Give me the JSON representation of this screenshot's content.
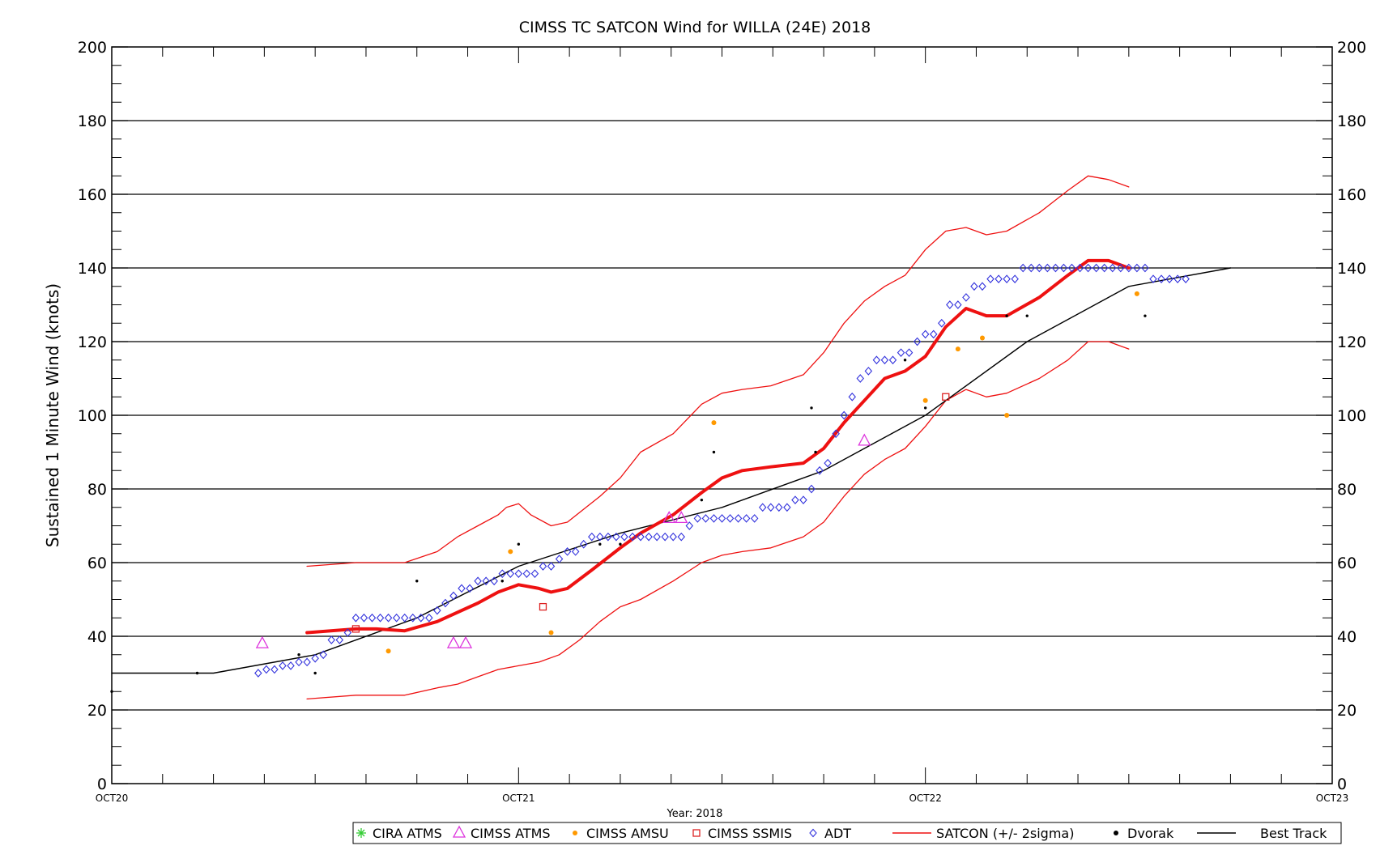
{
  "chart_data": {
    "type": "line",
    "title": "CIMSS TC SATCON Wind for WILLA (24E) 2018",
    "ylabel": "Sustained 1 Minute Wind (knots)",
    "xlabel": "Year: 2018",
    "ylim": [
      0,
      200
    ],
    "xlim": [
      0,
      3
    ],
    "x_unit": "days since OCT20 00Z",
    "y_ticks": [
      "0",
      "20",
      "40",
      "60",
      "80",
      "100",
      "120",
      "140",
      "160",
      "180",
      "200"
    ],
    "x_ticks": [
      "OCT20",
      "OCT21",
      "OCT22",
      "OCT23"
    ],
    "grid": true,
    "legend_position": "bottom",
    "legend": [
      {
        "label": "CIRA ATMS",
        "marker": "asterisk",
        "color": "#33cc33"
      },
      {
        "label": "CIMSS ATMS",
        "marker": "triangle",
        "color": "#dd33dd"
      },
      {
        "label": "CIMSS AMSU",
        "marker": "dot",
        "color": "#ff9900"
      },
      {
        "label": "CIMSS SSMIS",
        "marker": "square",
        "color": "#dd2222"
      },
      {
        "label": "ADT",
        "marker": "diamond",
        "color": "#3333dd"
      },
      {
        "label": "SATCON (+/- 2sigma)",
        "marker": "line",
        "color": "#ee1111"
      },
      {
        "label": "Dvorak",
        "marker": "dot",
        "color": "#000000"
      },
      {
        "label": "Best Track",
        "marker": "line",
        "color": "#000000"
      }
    ],
    "series": [
      {
        "name": "Best Track",
        "color": "#000000",
        "points": [
          [
            0.0,
            30
          ],
          [
            0.25,
            30
          ],
          [
            0.5,
            35
          ],
          [
            0.75,
            45
          ],
          [
            1.0,
            59
          ],
          [
            1.25,
            68
          ],
          [
            1.5,
            75
          ],
          [
            1.75,
            85
          ],
          [
            2.0,
            100
          ],
          [
            2.25,
            120
          ],
          [
            2.5,
            135
          ],
          [
            2.75,
            140
          ]
        ]
      },
      {
        "name": "SATCON",
        "color": "#ee1111",
        "points": [
          [
            0.48,
            41
          ],
          [
            0.6,
            42
          ],
          [
            0.65,
            42
          ],
          [
            0.72,
            41.5
          ],
          [
            0.8,
            44
          ],
          [
            0.9,
            49
          ],
          [
            0.95,
            52
          ],
          [
            1.0,
            54
          ],
          [
            1.05,
            53
          ],
          [
            1.08,
            52
          ],
          [
            1.12,
            53
          ],
          [
            1.18,
            58
          ],
          [
            1.25,
            64
          ],
          [
            1.3,
            68
          ],
          [
            1.38,
            73
          ],
          [
            1.45,
            79
          ],
          [
            1.5,
            83
          ],
          [
            1.55,
            85
          ],
          [
            1.62,
            86
          ],
          [
            1.7,
            87
          ],
          [
            1.75,
            91
          ],
          [
            1.8,
            98
          ],
          [
            1.85,
            104
          ],
          [
            1.9,
            110
          ],
          [
            1.95,
            112
          ],
          [
            2.0,
            116
          ],
          [
            2.05,
            124
          ],
          [
            2.1,
            129
          ],
          [
            2.15,
            127
          ],
          [
            2.2,
            127
          ],
          [
            2.28,
            132
          ],
          [
            2.35,
            138
          ],
          [
            2.4,
            142
          ],
          [
            2.45,
            142
          ],
          [
            2.5,
            140
          ]
        ]
      },
      {
        "name": "SATCON +2sigma",
        "color": "#ee1111",
        "points": [
          [
            0.48,
            59
          ],
          [
            0.6,
            60
          ],
          [
            0.65,
            60
          ],
          [
            0.72,
            60
          ],
          [
            0.8,
            63
          ],
          [
            0.85,
            67
          ],
          [
            0.9,
            70
          ],
          [
            0.95,
            73
          ],
          [
            0.97,
            75
          ],
          [
            1.0,
            76
          ],
          [
            1.03,
            73
          ],
          [
            1.08,
            70
          ],
          [
            1.12,
            71
          ],
          [
            1.2,
            78
          ],
          [
            1.25,
            83
          ],
          [
            1.3,
            90
          ],
          [
            1.38,
            95
          ],
          [
            1.45,
            103
          ],
          [
            1.5,
            106
          ],
          [
            1.55,
            107
          ],
          [
            1.62,
            108
          ],
          [
            1.7,
            111
          ],
          [
            1.75,
            117
          ],
          [
            1.8,
            125
          ],
          [
            1.85,
            131
          ],
          [
            1.9,
            135
          ],
          [
            1.95,
            138
          ],
          [
            2.0,
            145
          ],
          [
            2.05,
            150
          ],
          [
            2.1,
            151
          ],
          [
            2.15,
            149
          ],
          [
            2.2,
            150
          ],
          [
            2.28,
            155
          ],
          [
            2.35,
            161
          ],
          [
            2.4,
            165
          ],
          [
            2.45,
            164
          ],
          [
            2.5,
            162
          ]
        ]
      },
      {
        "name": "SATCON -2sigma",
        "color": "#ee1111",
        "points": [
          [
            0.48,
            23
          ],
          [
            0.6,
            24
          ],
          [
            0.65,
            24
          ],
          [
            0.72,
            24
          ],
          [
            0.8,
            26
          ],
          [
            0.85,
            27
          ],
          [
            0.9,
            29
          ],
          [
            0.95,
            31
          ],
          [
            1.0,
            32
          ],
          [
            1.05,
            33
          ],
          [
            1.1,
            35
          ],
          [
            1.15,
            39
          ],
          [
            1.2,
            44
          ],
          [
            1.25,
            48
          ],
          [
            1.3,
            50
          ],
          [
            1.38,
            55
          ],
          [
            1.45,
            60
          ],
          [
            1.5,
            62
          ],
          [
            1.55,
            63
          ],
          [
            1.62,
            64
          ],
          [
            1.7,
            67
          ],
          [
            1.75,
            71
          ],
          [
            1.8,
            78
          ],
          [
            1.85,
            84
          ],
          [
            1.9,
            88
          ],
          [
            1.95,
            91
          ],
          [
            2.0,
            97
          ],
          [
            2.05,
            104
          ],
          [
            2.1,
            107
          ],
          [
            2.15,
            105
          ],
          [
            2.2,
            106
          ],
          [
            2.28,
            110
          ],
          [
            2.35,
            115
          ],
          [
            2.4,
            120
          ],
          [
            2.45,
            120
          ],
          [
            2.5,
            118
          ]
        ]
      }
    ],
    "scatter": {
      "CIMSS ATMS": [
        [
          0.37,
          38
        ],
        [
          0.84,
          38
        ],
        [
          0.87,
          38
        ],
        [
          1.37,
          72
        ],
        [
          1.4,
          72
        ],
        [
          1.85,
          93
        ]
      ],
      "CIMSS AMSU": [
        [
          0.68,
          36
        ],
        [
          0.98,
          63
        ],
        [
          1.08,
          41
        ],
        [
          1.48,
          98
        ],
        [
          2.0,
          104
        ],
        [
          2.08,
          118
        ],
        [
          2.14,
          121
        ],
        [
          2.2,
          100
        ],
        [
          2.52,
          133
        ]
      ],
      "CIMSS SSMIS": [
        [
          0.6,
          42
        ],
        [
          1.06,
          48
        ],
        [
          2.05,
          105
        ]
      ],
      "ADT": [
        [
          0.36,
          30
        ],
        [
          0.38,
          31
        ],
        [
          0.4,
          31
        ],
        [
          0.42,
          32
        ],
        [
          0.44,
          32
        ],
        [
          0.46,
          33
        ],
        [
          0.48,
          33
        ],
        [
          0.5,
          34
        ],
        [
          0.52,
          35
        ],
        [
          0.54,
          39
        ],
        [
          0.56,
          39
        ],
        [
          0.58,
          41
        ],
        [
          0.6,
          45
        ],
        [
          0.62,
          45
        ],
        [
          0.64,
          45
        ],
        [
          0.66,
          45
        ],
        [
          0.68,
          45
        ],
        [
          0.7,
          45
        ],
        [
          0.72,
          45
        ],
        [
          0.74,
          45
        ],
        [
          0.76,
          45
        ],
        [
          0.78,
          45
        ],
        [
          0.8,
          47
        ],
        [
          0.82,
          49
        ],
        [
          0.84,
          51
        ],
        [
          0.86,
          53
        ],
        [
          0.88,
          53
        ],
        [
          0.9,
          55
        ],
        [
          0.92,
          55
        ],
        [
          0.94,
          55
        ],
        [
          0.96,
          57
        ],
        [
          0.98,
          57
        ],
        [
          1.0,
          57
        ],
        [
          1.02,
          57
        ],
        [
          1.04,
          57
        ],
        [
          1.06,
          59
        ],
        [
          1.08,
          59
        ],
        [
          1.1,
          61
        ],
        [
          1.12,
          63
        ],
        [
          1.14,
          63
        ],
        [
          1.16,
          65
        ],
        [
          1.18,
          67
        ],
        [
          1.2,
          67
        ],
        [
          1.22,
          67
        ],
        [
          1.24,
          67
        ],
        [
          1.26,
          67
        ],
        [
          1.28,
          67
        ],
        [
          1.3,
          67
        ],
        [
          1.32,
          67
        ],
        [
          1.34,
          67
        ],
        [
          1.36,
          67
        ],
        [
          1.38,
          67
        ],
        [
          1.4,
          67
        ],
        [
          1.42,
          70
        ],
        [
          1.44,
          72
        ],
        [
          1.46,
          72
        ],
        [
          1.48,
          72
        ],
        [
          1.5,
          72
        ],
        [
          1.52,
          72
        ],
        [
          1.54,
          72
        ],
        [
          1.56,
          72
        ],
        [
          1.58,
          72
        ],
        [
          1.6,
          75
        ],
        [
          1.62,
          75
        ],
        [
          1.64,
          75
        ],
        [
          1.66,
          75
        ],
        [
          1.68,
          77
        ],
        [
          1.7,
          77
        ],
        [
          1.72,
          80
        ],
        [
          1.74,
          85
        ],
        [
          1.76,
          87
        ],
        [
          1.78,
          95
        ],
        [
          1.8,
          100
        ],
        [
          1.82,
          105
        ],
        [
          1.84,
          110
        ],
        [
          1.86,
          112
        ],
        [
          1.88,
          115
        ],
        [
          1.9,
          115
        ],
        [
          1.92,
          115
        ],
        [
          1.94,
          117
        ],
        [
          1.96,
          117
        ],
        [
          1.98,
          120
        ],
        [
          2.0,
          122
        ],
        [
          2.02,
          122
        ],
        [
          2.04,
          125
        ],
        [
          2.06,
          130
        ],
        [
          2.08,
          130
        ],
        [
          2.1,
          132
        ],
        [
          2.12,
          135
        ],
        [
          2.14,
          135
        ],
        [
          2.16,
          137
        ],
        [
          2.18,
          137
        ],
        [
          2.2,
          137
        ],
        [
          2.22,
          137
        ],
        [
          2.24,
          140
        ],
        [
          2.26,
          140
        ],
        [
          2.28,
          140
        ],
        [
          2.3,
          140
        ],
        [
          2.32,
          140
        ],
        [
          2.34,
          140
        ],
        [
          2.36,
          140
        ],
        [
          2.38,
          140
        ],
        [
          2.4,
          140
        ],
        [
          2.42,
          140
        ],
        [
          2.44,
          140
        ],
        [
          2.46,
          140
        ],
        [
          2.48,
          140
        ],
        [
          2.5,
          140
        ],
        [
          2.52,
          140
        ],
        [
          2.54,
          140
        ],
        [
          2.56,
          137
        ],
        [
          2.58,
          137
        ],
        [
          2.6,
          137
        ],
        [
          2.62,
          137
        ],
        [
          2.64,
          137
        ]
      ],
      "Dvorak": [
        [
          0.0,
          25
        ],
        [
          0.21,
          30
        ],
        [
          0.46,
          35
        ],
        [
          0.5,
          30
        ],
        [
          0.75,
          55
        ],
        [
          0.96,
          55
        ],
        [
          1.0,
          65
        ],
        [
          1.2,
          65
        ],
        [
          1.25,
          65
        ],
        [
          1.45,
          77
        ],
        [
          1.48,
          90
        ],
        [
          1.73,
          90
        ],
        [
          1.72,
          102
        ],
        [
          1.95,
          115
        ],
        [
          2.0,
          102
        ],
        [
          2.2,
          127
        ],
        [
          2.25,
          127
        ],
        [
          2.54,
          127
        ]
      ]
    }
  }
}
